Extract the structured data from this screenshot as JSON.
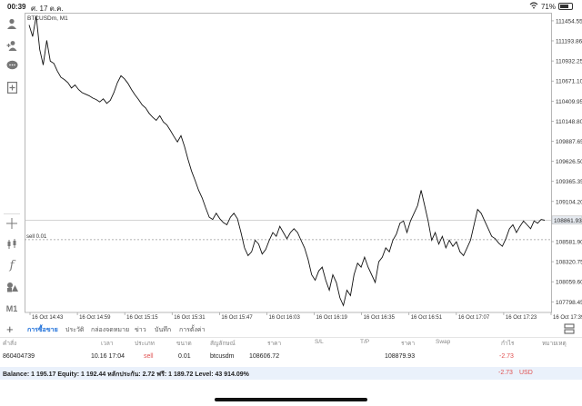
{
  "status_bar": {
    "time": "00:39",
    "date": "ศ. 17 ต.ค.",
    "battery": "71%"
  },
  "chart": {
    "symbol_label": "BTCUSDm, M1",
    "current_price": "108861.93",
    "order_line_label": "sell 0.01",
    "order_price": 108606.72,
    "line_color": "#111111",
    "price_ticks": [
      "111454.55",
      "111193.86",
      "110932.25",
      "110671.10",
      "110409.95",
      "110148.80",
      "109887.65",
      "109626.50",
      "109365.35",
      "109104.20",
      "108581.90",
      "108320.75",
      "108059.60",
      "107798.45"
    ],
    "time_ticks": [
      "16 Oct 14:43",
      "16 Oct 14:59",
      "16 Oct 15:15",
      "16 Oct 15:31",
      "16 Oct 15:47",
      "16 Oct 16:03",
      "16 Oct 16:19",
      "16 Oct 16:35",
      "16 Oct 16:51",
      "16 Oct 17:07",
      "16 Oct 17:23",
      "16 Oct 17:39"
    ]
  },
  "chart_data": {
    "type": "line",
    "title": "BTCUSDm, M1",
    "xlabel": "",
    "ylabel": "",
    "ylim": [
      107660,
      111560
    ],
    "grid": true,
    "series": [
      {
        "values": [
          111400,
          111250,
          111520,
          111080,
          110880,
          111200,
          110930,
          110900,
          110800,
          110720,
          110690,
          110650,
          110580,
          110620,
          110560,
          110520,
          110500,
          110480,
          110450,
          110430,
          110400,
          110440,
          110380,
          110420,
          110520,
          110650,
          110740,
          110700,
          110640,
          110560,
          110490,
          110430,
          110360,
          110320,
          110250,
          110200,
          110160,
          110220,
          110140,
          110100,
          110030,
          109950,
          109880,
          109960,
          109820,
          109650,
          109500,
          109380,
          109250,
          109150,
          109020,
          108900,
          108870,
          108950,
          108880,
          108830,
          108800,
          108900,
          108950,
          108880,
          108700,
          108500,
          108400,
          108450,
          108600,
          108550,
          108420,
          108480,
          108600,
          108700,
          108650,
          108780,
          108700,
          108620,
          108700,
          108750,
          108700,
          108600,
          108500,
          108350,
          108150,
          108080,
          108200,
          108250,
          108080,
          107950,
          108150,
          108050,
          107850,
          107750,
          107950,
          107880,
          108150,
          108300,
          108250,
          108380,
          108250,
          108150,
          108050,
          108320,
          108380,
          108500,
          108450,
          108600,
          108680,
          108820,
          108850,
          108700,
          108850,
          108950,
          109050,
          109250,
          109050,
          108850,
          108600,
          108700,
          108550,
          108650,
          108500,
          108600,
          108520,
          108580,
          108450,
          108400,
          108500,
          108600,
          108800,
          109000,
          108950,
          108850,
          108750,
          108650,
          108620,
          108560,
          108520,
          108620,
          108750,
          108800,
          108700,
          108780,
          108850,
          108800,
          108750,
          108850,
          108820,
          108870,
          108860
        ]
      }
    ]
  },
  "toolbar": {
    "icons": [
      "person-icon",
      "add-person-icon",
      "chat-icon",
      "new-order-icon",
      "crosshair-icon",
      "candles-icon",
      "indicator-icon",
      "objects-icon"
    ],
    "timeframe": "M1"
  },
  "tabs": [
    "การซื้อขาย",
    "ประวัติ",
    "กล่องจดหมาย",
    "ข่าว",
    "บันทึก",
    "การตั้งค่า"
  ],
  "table": {
    "headers": [
      "คำสั่ง",
      "เวลา",
      "ประเภท",
      "ขนาด",
      "สัญลักษณ์",
      "ราคา",
      "S/L",
      "T/P",
      "ราคา",
      "Swap",
      "กำไร",
      "หมายเหตุ"
    ],
    "row": {
      "order": "860404739",
      "time": "10.16 17:04",
      "type": "sell",
      "size": "0.01",
      "symbol": "btcusdm",
      "open_price": "108606.72",
      "sl": "",
      "tp": "",
      "current_price": "108879.93",
      "swap": "",
      "profit": "-2.73",
      "comment": ""
    }
  },
  "balance": {
    "summary": "Balance: 1 195.17 Equity: 1 192.44 หลักประกัน: 2.72 ฟรี: 1 189.72 Level: 43 914.09%",
    "profit": "-2.73",
    "currency": "USD"
  }
}
